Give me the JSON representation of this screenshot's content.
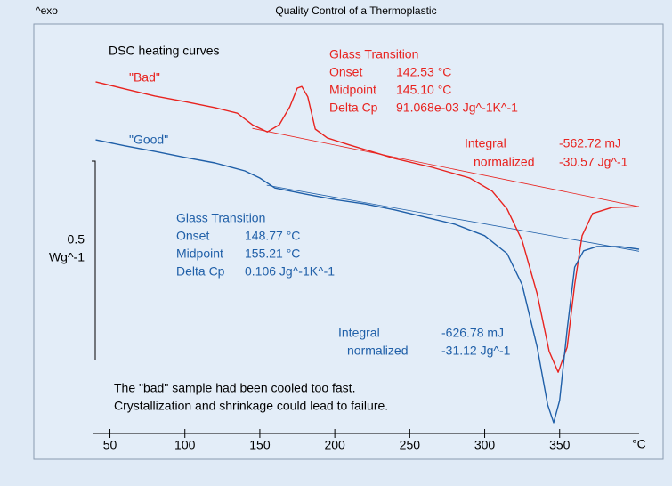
{
  "chart_data": {
    "type": "line",
    "corner_label": "^exo",
    "title": "Quality Control of a Thermoplastic",
    "subtitle": "DSC heating curves",
    "x_label": "°C",
    "xlim": [
      39,
      403
    ],
    "xticks": [
      50,
      100,
      150,
      200,
      250,
      300,
      350
    ],
    "ylim": [
      -1.0,
      0.0
    ],
    "scale_bar": {
      "value": 0.5,
      "unit": "Wg^-1"
    },
    "series": [
      {
        "name": "\"Bad\"",
        "color": "#e8231f",
        "x": [
          40.5,
          60,
          80,
          100,
          120,
          135,
          145,
          155,
          163,
          170,
          175,
          178,
          182,
          187,
          195,
          210,
          240,
          265,
          290,
          305,
          315,
          325,
          335,
          343,
          349,
          355,
          360,
          365,
          372,
          385,
          403
        ],
        "values": [
          -0.116,
          -0.134,
          -0.152,
          -0.166,
          -0.181,
          -0.195,
          -0.224,
          -0.242,
          -0.224,
          -0.179,
          -0.132,
          -0.128,
          -0.154,
          -0.235,
          -0.257,
          -0.275,
          -0.309,
          -0.331,
          -0.358,
          -0.391,
          -0.436,
          -0.515,
          -0.649,
          -0.794,
          -0.846,
          -0.783,
          -0.626,
          -0.503,
          -0.447,
          -0.432,
          -0.43
        ]
      },
      {
        "name": "\"Good\"",
        "color": "#1f5fa8",
        "x": [
          40.5,
          60,
          80,
          100,
          120,
          140,
          150,
          160,
          180,
          200,
          220,
          240,
          260,
          280,
          300,
          315,
          325,
          335,
          342,
          346,
          350,
          355,
          360,
          366,
          375,
          390,
          403
        ],
        "values": [
          -0.262,
          -0.277,
          -0.291,
          -0.306,
          -0.32,
          -0.34,
          -0.358,
          -0.383,
          -0.398,
          -0.412,
          -0.423,
          -0.438,
          -0.456,
          -0.474,
          -0.503,
          -0.548,
          -0.626,
          -0.783,
          -0.928,
          -0.973,
          -0.917,
          -0.738,
          -0.582,
          -0.541,
          -0.53,
          -0.53,
          -0.537
        ]
      }
    ],
    "baselines": [
      {
        "color": "#e8231f",
        "x": [
          145,
          403
        ],
        "values": [
          -0.233,
          -0.43
        ]
      },
      {
        "color": "#1f5fa8",
        "x": [
          154.6,
          403
        ],
        "values": [
          -0.376,
          -0.542
        ]
      }
    ],
    "annotations": {
      "bad_glass": {
        "heading": "Glass Transition",
        "onset_label": "Onset",
        "onset": "142.53 °C",
        "midpoint_label": "Midpoint",
        "midpoint": "145.10 °C",
        "delta_label": "Delta Cp",
        "delta": "91.068e-03 Jg^-1K^-1"
      },
      "bad_integral": {
        "integral_label": "Integral",
        "integral": "-562.72 mJ",
        "normalized_label": "normalized",
        "normalized": "-30.57 Jg^-1"
      },
      "good_glass": {
        "heading": "Glass Transition",
        "onset_label": "Onset",
        "onset": "148.77 °C",
        "midpoint_label": "Midpoint",
        "midpoint": "155.21 °C",
        "delta_label": "Delta Cp",
        "delta": "0.106 Jg^-1K^-1"
      },
      "good_integral": {
        "integral_label": "Integral",
        "integral": "-626.78 mJ",
        "normalized_label": "normalized",
        "normalized": "-31.12 Jg^-1"
      }
    },
    "notes": [
      "The \"bad\" sample had been cooled too fast.",
      "Crystallization and shrinkage could lead to failure."
    ]
  }
}
